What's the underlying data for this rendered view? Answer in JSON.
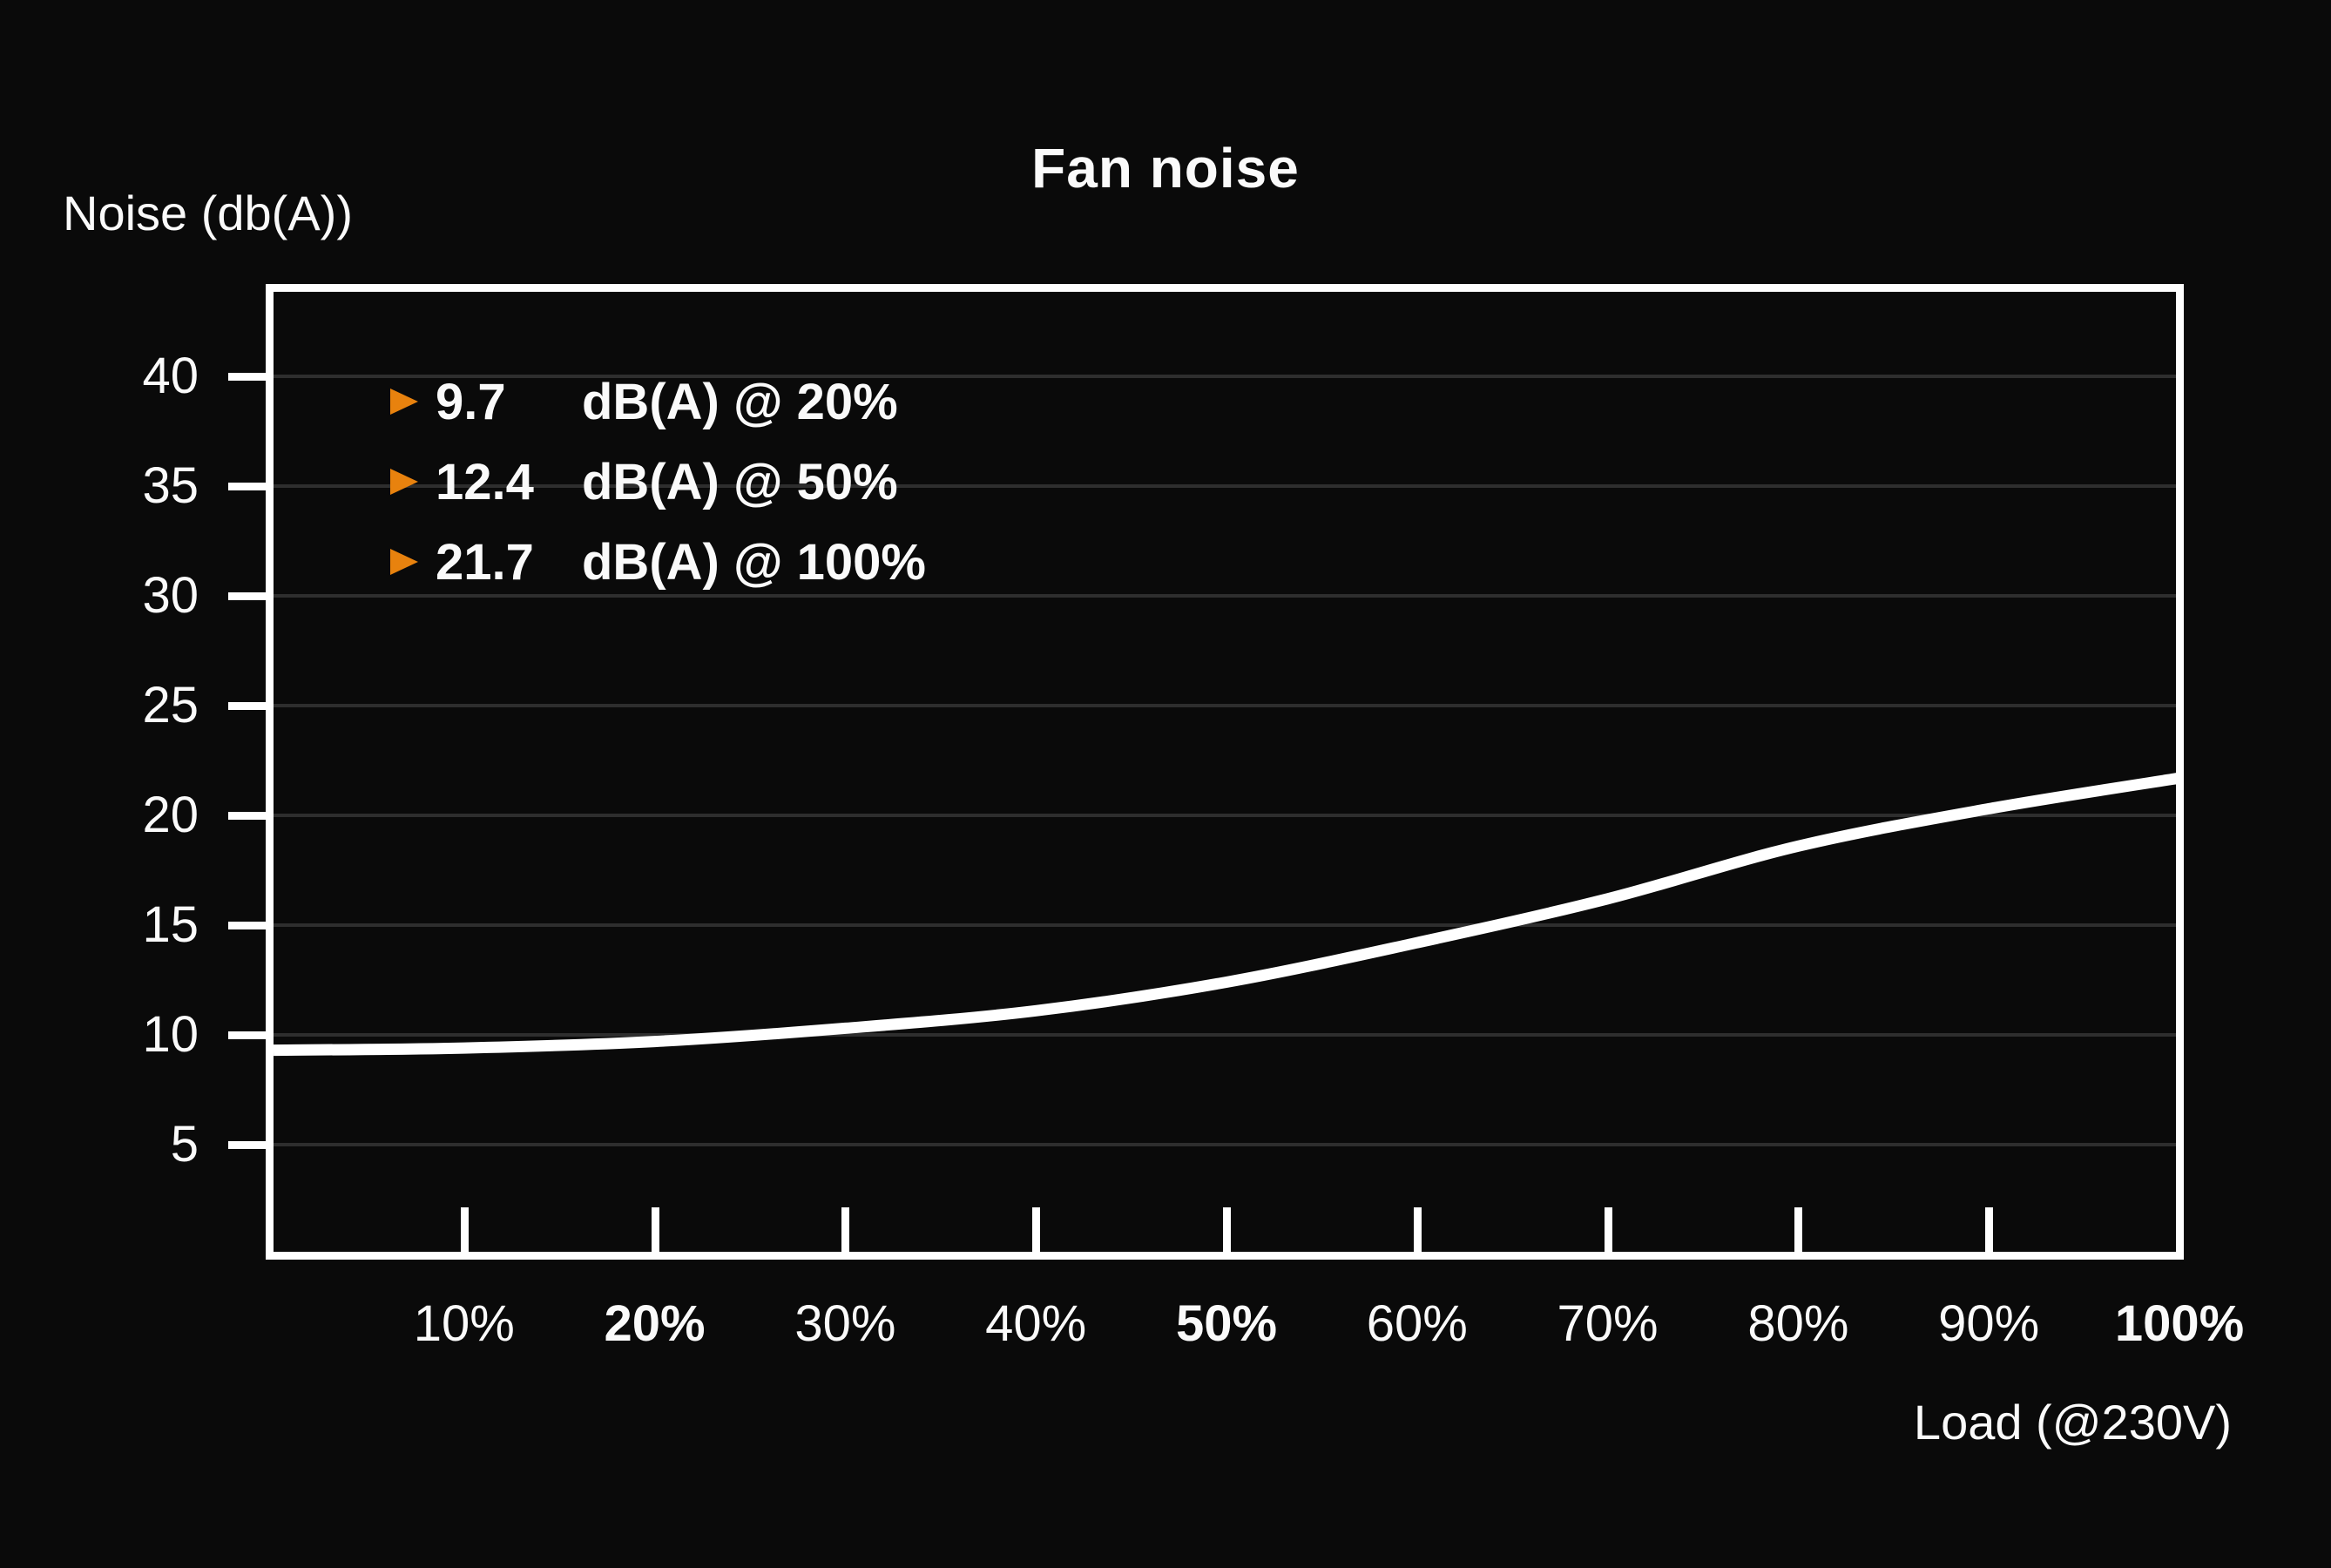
{
  "page": {
    "background": "#0a0a0a",
    "foreground": "#fafafa"
  },
  "header": {
    "title": "Fan noise"
  },
  "axes": {
    "y_title": "Noise (db(A))",
    "x_title": "Load (@230V)"
  },
  "legend": {
    "marker": "right-triangle-icon",
    "marker_color": "#e8820e",
    "rows": [
      {
        "value": "9.7",
        "label": "dB(A) @ 20%"
      },
      {
        "value": "12.4",
        "label": "dB(A) @ 50%"
      },
      {
        "value": "21.7",
        "label": "dB(A) @ 100%"
      }
    ]
  },
  "chart_data": {
    "type": "line",
    "title": "Fan noise",
    "xlabel": "Load (@230V)",
    "ylabel": "Noise (db(A))",
    "x_ticks": [
      {
        "label": "10%",
        "pct": 10,
        "bold": false
      },
      {
        "label": "20%",
        "pct": 20,
        "bold": true
      },
      {
        "label": "30%",
        "pct": 30,
        "bold": false
      },
      {
        "label": "40%",
        "pct": 40,
        "bold": false
      },
      {
        "label": "50%",
        "pct": 50,
        "bold": true
      },
      {
        "label": "60%",
        "pct": 60,
        "bold": false
      },
      {
        "label": "70%",
        "pct": 70,
        "bold": false
      },
      {
        "label": "80%",
        "pct": 80,
        "bold": false
      },
      {
        "label": "90%",
        "pct": 90,
        "bold": false
      },
      {
        "label": "100%",
        "pct": 100,
        "bold": true
      }
    ],
    "y_ticks": [
      40,
      35,
      30,
      25,
      20,
      15,
      10,
      5
    ],
    "ylim": [
      0,
      44
    ],
    "xlim_pct": [
      0,
      100
    ],
    "grid": "horizontal-only",
    "legend_position": "top-left-inside",
    "series": [
      {
        "name": "fan-noise-curve",
        "color": "#ffffff",
        "x_pct": [
          0,
          10,
          20,
          30,
          40,
          50,
          60,
          70,
          80,
          90,
          100
        ],
        "values": [
          9.3,
          9.4,
          9.7,
          10.3,
          11.1,
          12.4,
          14.2,
          16.2,
          18.6,
          20.3,
          21.7
        ]
      }
    ],
    "labeled_points": [
      {
        "x_pct": 20,
        "value": 9.7
      },
      {
        "x_pct": 50,
        "value": 12.4
      },
      {
        "x_pct": 100,
        "value": 21.7
      }
    ],
    "colors": {
      "curve": "#ffffff",
      "axis": "#ffffff",
      "grid": "#2e2e2e",
      "background": "#0a0a0a",
      "accent_orange": "#e8820e"
    }
  }
}
